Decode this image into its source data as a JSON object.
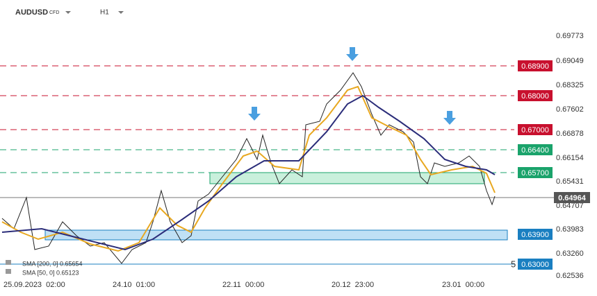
{
  "header": {
    "symbol": "AUDUSD",
    "instrument": "CFD",
    "timeframe": "H1"
  },
  "price_axis": [
    "0.69773",
    "0.69049",
    "0.68325",
    "0.67602",
    "0.66878",
    "0.66154",
    "0.65431",
    "0.64707",
    "0.63983",
    "0.63260",
    "0.62536"
  ],
  "levels": [
    {
      "label": "0.68900",
      "color": "#c8102e"
    },
    {
      "label": "0.68000",
      "color": "#c8102e"
    },
    {
      "label": "0.67000",
      "color": "#c8102e"
    },
    {
      "label": "0.66400",
      "color": "#1aa36b"
    },
    {
      "label": "0.65700",
      "color": "#1aa36b"
    },
    {
      "label": "0.63900",
      "color": "#1a7fc1"
    },
    {
      "label": "0.63000",
      "color": "#1a7fc1"
    }
  ],
  "current_price": "0.64964",
  "time_axis": [
    "25.09.2023  02:00",
    "24.10  01:00",
    "22.11  00:00",
    "20.12  23:00",
    "23.01  00:00"
  ],
  "indicators": [
    "SMA [200, 0]  0.65654",
    "SMA [50, 0]  0.65123"
  ],
  "marker": "5"
}
